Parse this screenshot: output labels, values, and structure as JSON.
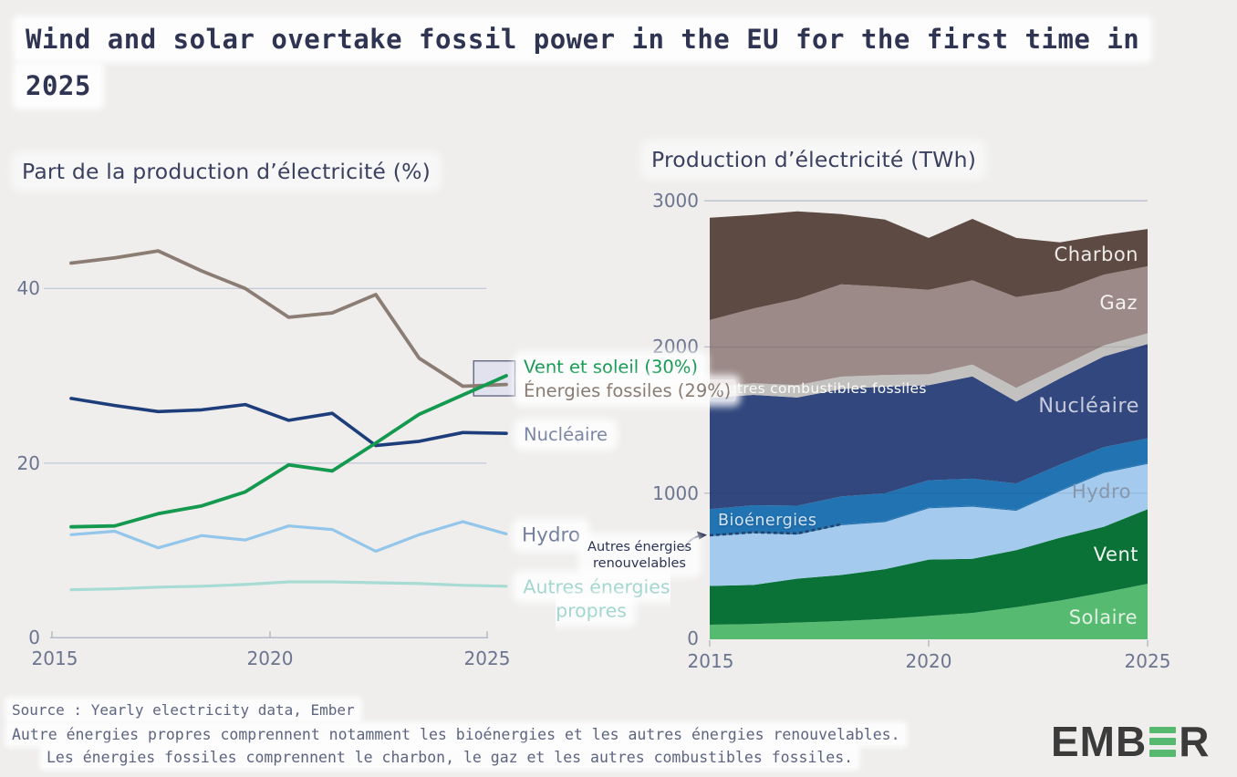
{
  "page": {
    "title_line1": "Wind and solar overtake fossil power in the EU for the first time in",
    "title_line2": "2025",
    "background": "#efeeed"
  },
  "chart_data": [
    {
      "type": "line",
      "title": "Part de la production d’électricité (%)",
      "years": [
        2015,
        2016,
        2017,
        2018,
        2019,
        2020,
        2021,
        2022,
        2023,
        2024,
        2025
      ],
      "x_tick_labels": [
        "2015",
        "2020",
        "2025"
      ],
      "y_tick_labels": [
        "0",
        "20",
        "40"
      ],
      "y_ticks": [
        0,
        20,
        40
      ],
      "ylim": [
        0,
        47
      ],
      "grid": true,
      "series": [
        {
          "id": "autres_propres",
          "label": "Autres énergies propres",
          "color": "#a7dbd3",
          "label_color": "#a3d7cf",
          "values": [
            5.5,
            5.6,
            5.8,
            5.9,
            6.1,
            6.4,
            6.4,
            6.3,
            6.2,
            6.0,
            5.9
          ]
        },
        {
          "id": "hydro",
          "label": "Hydro",
          "color": "#93c6ea",
          "label_color": "#75819e",
          "values": [
            11.8,
            12.2,
            10.3,
            11.7,
            11.2,
            12.8,
            12.4,
            9.9,
            11.8,
            13.3,
            11.9
          ]
        },
        {
          "id": "nucleaire",
          "label": "Nucléaire",
          "color": "#1e3d7b",
          "label_color": "#7c87a6",
          "values": [
            27.4,
            26.6,
            25.9,
            26.1,
            26.7,
            24.9,
            25.7,
            22.0,
            22.5,
            23.5,
            23.4
          ]
        },
        {
          "id": "fossiles",
          "label": "Énergies fossiles (29%)",
          "color": "#8b7d73",
          "label_color": "#8a7c72",
          "values": [
            42.9,
            43.5,
            44.3,
            42.0,
            40.0,
            36.7,
            37.2,
            39.3,
            32.0,
            28.8,
            29.0
          ]
        },
        {
          "id": "vent_soleil",
          "label": "Vent et soleil (30%)",
          "color": "#14994f",
          "label_color": "#149a52",
          "values": [
            12.7,
            12.8,
            14.2,
            15.1,
            16.7,
            19.8,
            19.1,
            22.3,
            25.6,
            27.8,
            30.0
          ]
        }
      ],
      "highlight_box": {
        "x0": 2024.25,
        "x1": 2025.2,
        "v0": 27.7,
        "v1": 31.7,
        "fill": "#e1e2ee",
        "stroke": "#636880"
      }
    },
    {
      "type": "area",
      "title": "Production d’électricité (TWh)",
      "years": [
        2015,
        2016,
        2017,
        2018,
        2019,
        2020,
        2021,
        2022,
        2023,
        2024,
        2025
      ],
      "x_tick_labels": [
        "2015",
        "2020",
        "2025"
      ],
      "y_tick_labels": [
        "0",
        "1000",
        "2000",
        "3000"
      ],
      "y_ticks": [
        0,
        1000,
        2000,
        3000
      ],
      "ylim": [
        0,
        3100
      ],
      "stacked": true,
      "series": [
        {
          "id": "solaire",
          "label": "Solaire",
          "color": "#56bb70",
          "label_color": "#e3f1e5",
          "values": [
            100,
            105,
            115,
            125,
            140,
            160,
            180,
            220,
            265,
            320,
            380
          ]
        },
        {
          "id": "vent",
          "label": "Vent",
          "color": "#0a7137",
          "label_color": "#f2f7f2",
          "values": [
            265,
            267,
            300,
            315,
            340,
            385,
            370,
            390,
            430,
            450,
            510
          ]
        },
        {
          "id": "hydro",
          "label": "Hydro",
          "color": "#a4cbee",
          "label_color": "#8796ab",
          "values": [
            340,
            354,
            302,
            340,
            322,
            351,
            357,
            269,
            318,
            368,
            310
          ]
        },
        {
          "id": "autres_renouvelables",
          "label": "Autres énergies renouvelables",
          "color": "#2173b2",
          "label_color": "#2b3454",
          "values": [
            6,
            6,
            7,
            7,
            7,
            7,
            7,
            7,
            7,
            7,
            7
          ]
        },
        {
          "id": "bioenergies",
          "label": "Bioénergies",
          "color": "#2173b2",
          "label_color": "#d2e4f6",
          "values": [
            180,
            185,
            190,
            190,
            190,
            185,
            185,
            180,
            175,
            170,
            168
          ]
        },
        {
          "id": "nucleaire",
          "label": "Nucléaire",
          "color": "#31477d",
          "label_color": "#c7cbdd",
          "values": [
            760,
            755,
            740,
            735,
            730,
            650,
            700,
            560,
            590,
            620,
            645
          ]
        },
        {
          "id": "autres_combustibles",
          "label": "Autres combustibles fossiles",
          "color": "#c3c1bf",
          "label_color": "#fbfbfa",
          "values": [
            76,
            80,
            85,
            85,
            80,
            75,
            80,
            95,
            80,
            75,
            73
          ]
        },
        {
          "id": "gaz",
          "label": "Gaz",
          "color": "#9b8a88",
          "label_color": "#f4f1f0",
          "values": [
            457,
            511,
            589,
            632,
            603,
            578,
            577,
            620,
            520,
            485,
            459
          ]
        },
        {
          "id": "charbon",
          "label": "Charbon",
          "color": "#5d4b43",
          "label_color": "#eeebe8",
          "values": [
            700,
            640,
            600,
            480,
            460,
            355,
            420,
            405,
            330,
            270,
            255
          ]
        }
      ],
      "annotation": {
        "line1": "Autres énergies",
        "line2": "renouvelables",
        "color": "#2b3454"
      }
    }
  ],
  "footer": {
    "source": "Source : Yearly electricity data, Ember",
    "note1": "Autre énergies propres comprennent notamment les bioénergies et les autres énergies renouvelables.",
    "note2": "Les énergies fossiles comprennent le charbon, le gaz et les autres combustibles fossiles.",
    "text_color": "#5d6480"
  },
  "logo": {
    "word_start": "EMB",
    "word_end": "R",
    "text_color": "#3b3b3b",
    "accent_color": "#57b96f"
  }
}
